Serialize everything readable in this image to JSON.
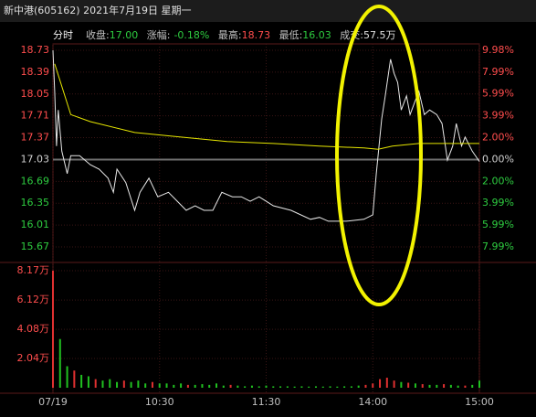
{
  "header": {
    "title": "新中港(605162) 2021年7月19日 星期一",
    "mode": "分时",
    "fields": [
      {
        "label": "收盘:",
        "value": "17.00"
      },
      {
        "label": "涨幅:",
        "value": "-0.18%"
      },
      {
        "label": "最高:",
        "value": "18.73"
      },
      {
        "label": "最低:",
        "value": "16.03"
      },
      {
        "label": "成交:",
        "value": "57.5万"
      }
    ]
  },
  "chart_data": [
    {
      "type": "line",
      "xlim": [
        0,
        240
      ],
      "ylim": [
        15.67,
        18.73
      ],
      "yticks": [
        18.73,
        18.39,
        18.05,
        17.71,
        17.37,
        17.03,
        16.69,
        16.35,
        16.01,
        15.67
      ],
      "y2lim": [
        -7.99,
        9.98
      ],
      "y2ticks": [
        {
          "value": 9.98,
          "label": "9.98%"
        },
        {
          "value": 7.99,
          "label": "7.99%"
        },
        {
          "value": 5.99,
          "label": "5.99%"
        },
        {
          "value": 3.99,
          "label": "3.99%"
        },
        {
          "value": 2.0,
          "label": "2.00%"
        },
        {
          "value": 0,
          "label": "0.00%"
        },
        {
          "value": -2.0,
          "label": "2.00%"
        },
        {
          "value": -3.99,
          "label": "3.99%"
        },
        {
          "value": -5.99,
          "label": "5.99%"
        },
        {
          "value": -7.99,
          "label": "7.99%"
        }
      ],
      "grid": true,
      "series": [
        {
          "color": "#e8e8e8",
          "x": [
            0,
            1,
            2,
            3,
            5,
            8,
            10,
            15,
            21,
            26,
            31,
            34,
            36,
            41,
            46,
            49,
            54,
            59,
            65,
            70,
            75,
            80,
            85,
            90,
            95,
            101,
            106,
            111,
            116,
            120,
            124,
            134,
            145,
            150,
            155,
            165,
            175,
            180,
            182,
            185,
            187,
            190,
            192,
            194,
            196,
            199,
            201,
            204,
            206,
            209,
            212,
            216,
            219,
            222,
            225,
            227,
            230,
            232,
            236,
            240
          ],
          "values": [
            18.73,
            18.09,
            17.24,
            17.8,
            17.16,
            16.81,
            17.09,
            17.09,
            16.95,
            16.88,
            16.74,
            16.52,
            16.88,
            16.67,
            16.24,
            16.52,
            16.74,
            16.45,
            16.52,
            16.38,
            16.24,
            16.31,
            16.24,
            16.24,
            16.52,
            16.45,
            16.45,
            16.38,
            16.45,
            16.38,
            16.31,
            16.24,
            16.1,
            16.13,
            16.07,
            16.07,
            16.1,
            16.17,
            16.81,
            17.66,
            18.02,
            18.59,
            18.37,
            18.23,
            17.8,
            18.02,
            17.73,
            17.95,
            18.09,
            17.73,
            17.8,
            17.73,
            17.59,
            17.02,
            17.24,
            17.59,
            17.24,
            17.38,
            17.16,
            17.0
          ]
        },
        {
          "color": "#e6e600",
          "x": [
            1,
            10,
            21,
            46,
            72,
            98,
            124,
            150,
            175,
            183,
            191,
            206,
            240
          ],
          "values": [
            18.52,
            17.73,
            17.62,
            17.45,
            17.38,
            17.31,
            17.28,
            17.24,
            17.21,
            17.19,
            17.24,
            17.28,
            17.28
          ]
        }
      ]
    },
    {
      "type": "bar",
      "xlim": [
        0,
        240
      ],
      "ylim": [
        0,
        8.17
      ],
      "xticks": [
        {
          "value": 0,
          "label": "07/19"
        },
        {
          "value": 60,
          "label": "10:30"
        },
        {
          "value": 120,
          "label": "11:30"
        },
        {
          "value": 180,
          "label": "14:00"
        },
        {
          "value": 240,
          "label": "15:00"
        }
      ],
      "yticks": [
        {
          "value": 8.17,
          "label": "8.17万"
        },
        {
          "value": 6.12,
          "label": "6.12万"
        },
        {
          "value": 4.08,
          "label": "4.08万"
        },
        {
          "value": 2.04,
          "label": "2.04万"
        }
      ],
      "grid": true,
      "x": [
        0,
        4,
        8,
        12,
        16,
        20,
        24,
        28,
        32,
        36,
        40,
        44,
        48,
        52,
        56,
        60,
        64,
        68,
        72,
        76,
        80,
        84,
        88,
        92,
        96,
        100,
        104,
        108,
        112,
        116,
        120,
        124,
        128,
        132,
        136,
        140,
        144,
        148,
        152,
        156,
        160,
        164,
        168,
        172,
        176,
        180,
        184,
        188,
        192,
        196,
        200,
        204,
        208,
        212,
        216,
        220,
        224,
        228,
        232,
        236,
        240
      ],
      "values": [
        8.17,
        3.4,
        1.5,
        1.2,
        0.9,
        0.8,
        0.6,
        0.5,
        0.6,
        0.4,
        0.5,
        0.4,
        0.5,
        0.3,
        0.4,
        0.3,
        0.3,
        0.2,
        0.3,
        0.2,
        0.2,
        0.25,
        0.2,
        0.3,
        0.15,
        0.2,
        0.15,
        0.1,
        0.15,
        0.1,
        0.15,
        0.1,
        0.1,
        0.1,
        0.08,
        0.1,
        0.08,
        0.1,
        0.08,
        0.1,
        0.08,
        0.1,
        0.1,
        0.15,
        0.2,
        0.3,
        0.6,
        0.7,
        0.5,
        0.4,
        0.35,
        0.3,
        0.25,
        0.2,
        0.2,
        0.25,
        0.2,
        0.15,
        0.15,
        0.2,
        0.5
      ],
      "colors": [
        "#e03030",
        "#20c020",
        "#20c020",
        "#e03030",
        "#20c020",
        "#20c020",
        "#e03030",
        "#20c020",
        "#20c020",
        "#20c020",
        "#e03030",
        "#20c020",
        "#20c020",
        "#20c020",
        "#e03030",
        "#20c020",
        "#20c020",
        "#20c020",
        "#20c020",
        "#e03030",
        "#20c020",
        "#20c020",
        "#20c020",
        "#20c020",
        "#20c020",
        "#e03030",
        "#20c020",
        "#20c020",
        "#20c020",
        "#20c020",
        "#20c020",
        "#20c020",
        "#20c020",
        "#20c020",
        "#20c020",
        "#20c020",
        "#20c020",
        "#20c020",
        "#20c020",
        "#20c020",
        "#20c020",
        "#20c020",
        "#20c020",
        "#20c020",
        "#e03030",
        "#e03030",
        "#e03030",
        "#e03030",
        "#e03030",
        "#20c020",
        "#e03030",
        "#20c020",
        "#e03030",
        "#20c020",
        "#20c020",
        "#e03030",
        "#20c020",
        "#20c020",
        "#e03030",
        "#20c020",
        "#20c020"
      ]
    }
  ]
}
